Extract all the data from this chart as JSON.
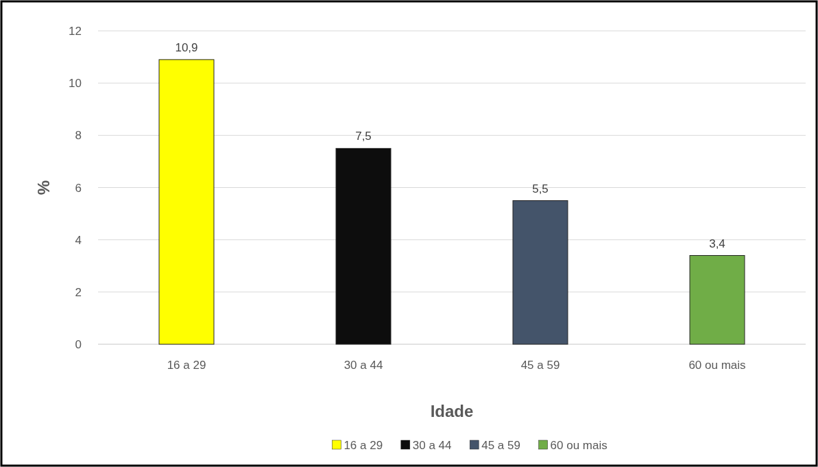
{
  "chart_data": {
    "type": "bar",
    "categories": [
      "16 a 29",
      "30 a 44",
      "45 a 59",
      "60 ou mais"
    ],
    "series": [
      {
        "name": "16 a 29",
        "color": "#ffff00",
        "values": [
          10.9,
          null,
          null,
          null
        ],
        "value_labels": [
          "10,9",
          null,
          null,
          null
        ]
      },
      {
        "name": "30 a 44",
        "color": "#0d0d0d",
        "values": [
          null,
          7.5,
          null,
          null
        ],
        "value_labels": [
          null,
          "7,5",
          null,
          null
        ]
      },
      {
        "name": "45 a 59",
        "color": "#44546a",
        "values": [
          null,
          null,
          5.5,
          null
        ],
        "value_labels": [
          null,
          null,
          "5,5",
          null
        ]
      },
      {
        "name": "60 ou mais",
        "color": "#70ad47",
        "values": [
          null,
          null,
          null,
          3.4
        ],
        "value_labels": [
          null,
          null,
          null,
          "3,4"
        ]
      }
    ],
    "xlabel": "Idade",
    "ylabel": "%",
    "ylim": [
      0,
      12
    ],
    "yticks": [
      0,
      2,
      4,
      6,
      8,
      10,
      12
    ],
    "grid": "y",
    "legend": "bottom"
  }
}
